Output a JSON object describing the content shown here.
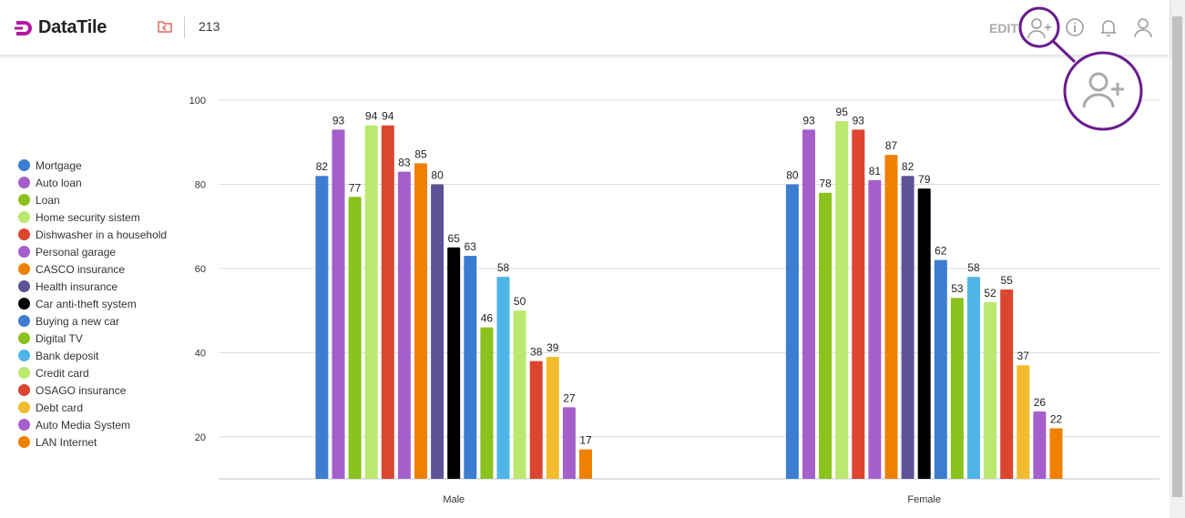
{
  "header": {
    "brand": "DataTile",
    "count": "213",
    "edit_label": "EDIT",
    "brand_color": "#b5179e",
    "highlight_color": "#6a1b8f",
    "icons": [
      "folder-back-icon",
      "add-user-icon",
      "info-icon",
      "bell-icon",
      "user-icon"
    ]
  },
  "chart_data": {
    "type": "bar",
    "categories": [
      "Male",
      "Female"
    ],
    "ylim": [
      10,
      100
    ],
    "yticks": [
      20,
      40,
      60,
      80,
      100
    ],
    "grid": true,
    "legend_position": "left",
    "series": [
      {
        "name": "Mortgage",
        "color": "#3d7dd0",
        "values": [
          82,
          80
        ]
      },
      {
        "name": "Auto loan",
        "color": "#a55fcb",
        "values": [
          93,
          93
        ]
      },
      {
        "name": "Loan",
        "color": "#8ac21e",
        "values": [
          77,
          78
        ]
      },
      {
        "name": "Home security sistem",
        "color": "#bce86f",
        "values": [
          94,
          95
        ]
      },
      {
        "name": "Dishwasher in a household",
        "color": "#dc4530",
        "values": [
          94,
          93
        ]
      },
      {
        "name": "Personal garage",
        "color": "#a55fcb",
        "values": [
          83,
          81
        ]
      },
      {
        "name": "CASCO insurance",
        "color": "#f08000",
        "values": [
          85,
          87
        ]
      },
      {
        "name": "Health insurance",
        "color": "#5c5396",
        "values": [
          80,
          82
        ]
      },
      {
        "name": "Car anti-theft system",
        "color": "#000000",
        "values": [
          65,
          79
        ]
      },
      {
        "name": "Buying a new car",
        "color": "#3d7dd0",
        "values": [
          63,
          62
        ]
      },
      {
        "name": "Digital TV",
        "color": "#8ac21e",
        "values": [
          46,
          53
        ]
      },
      {
        "name": "Bank deposit",
        "color": "#4fb5e8",
        "values": [
          58,
          58
        ]
      },
      {
        "name": "Credit card",
        "color": "#bce86f",
        "values": [
          50,
          52
        ]
      },
      {
        "name": "OSAGO insurance",
        "color": "#dc4530",
        "values": [
          38,
          55
        ]
      },
      {
        "name": "Debt card",
        "color": "#f3bc2e",
        "values": [
          39,
          37
        ]
      },
      {
        "name": "Auto Media System",
        "color": "#a55fcb",
        "values": [
          27,
          26
        ]
      },
      {
        "name": "LAN Internet",
        "color": "#f08000",
        "values": [
          17,
          22
        ]
      }
    ]
  }
}
